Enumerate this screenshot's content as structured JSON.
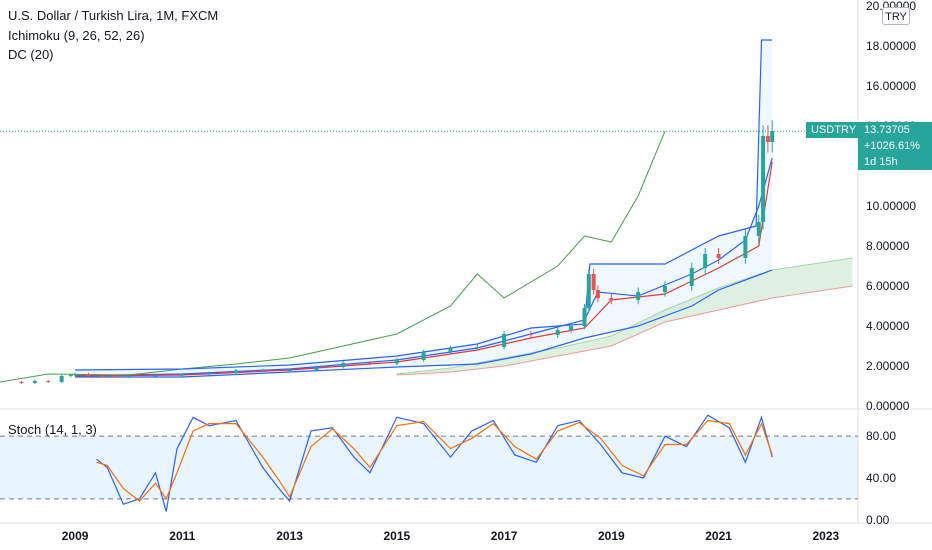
{
  "header": {
    "symbol_title": "U.S. Dollar / Turkish Lira, 1M, FXCM",
    "ichimoku_label": "Ichimoku (9, 26, 52, 26)",
    "dc_label": "DC (20)",
    "currency_badge": "TRY"
  },
  "stoch_panel": {
    "label": "Stoch (14, 1, 3)"
  },
  "price_badge": {
    "symbol": "USDTRY",
    "price": "13.73705",
    "change": "+1026.61%",
    "countdown": "1d 15h"
  },
  "colors": {
    "up": "#26a69a",
    "down": "#ef5350",
    "tenkan": "#2962ff",
    "kijun": "#e53935",
    "chikou": "#43a047",
    "donchian": "#2962ff",
    "stoch_k": "#2962ff",
    "stoch_d": "#ff6d00",
    "cloud_fill": "#c8e6c9"
  },
  "chart_data": [
    {
      "type": "line",
      "subtype": "candlestick",
      "title": "U.S. Dollar / Turkish Lira, 1M, FXCM",
      "x_axis": {
        "ticks": [
          "2009",
          "2011",
          "2013",
          "2015",
          "2017",
          "2019",
          "2021",
          "2023"
        ],
        "range": [
          2007.6,
          2023.6
        ]
      },
      "y_axis": {
        "ticks": [
          "0.00000",
          "2.00000",
          "4.00000",
          "6.00000",
          "8.00000",
          "10.00000",
          "12.00000",
          "14.00000",
          "16.00000",
          "18.00000",
          "20.00000"
        ],
        "range": [
          -0.1,
          20.3
        ]
      },
      "last_price_line": 13.73705,
      "series": [
        {
          "name": "USDTRY",
          "x": [
            2007.83,
            2008.0,
            2008.25,
            2008.5,
            2008.75,
            2008.92,
            2009.0,
            2009.25,
            2009.5,
            2009.75,
            2010.0,
            2010.5,
            2011.0,
            2011.5,
            2012.0,
            2012.5,
            2013.0,
            2013.5,
            2014.0,
            2014.5,
            2015.0,
            2015.5,
            2016.0,
            2016.5,
            2017.0,
            2017.5,
            2018.0,
            2018.25,
            2018.5,
            2018.58,
            2018.67,
            2018.75,
            2019.0,
            2019.5,
            2020.0,
            2020.5,
            2020.75,
            2021.0,
            2021.5,
            2021.75,
            2021.83,
            2021.92,
            2022.0
          ],
          "values": [
            1.2,
            1.15,
            1.25,
            1.2,
            1.5,
            1.55,
            1.6,
            1.5,
            1.48,
            1.45,
            1.5,
            1.52,
            1.58,
            1.65,
            1.78,
            1.8,
            1.8,
            1.95,
            2.15,
            2.12,
            2.3,
            2.7,
            2.9,
            2.95,
            3.6,
            3.55,
            3.8,
            4.0,
            4.9,
            6.6,
            5.8,
            5.4,
            5.3,
            5.7,
            6.0,
            6.9,
            7.6,
            7.4,
            8.5,
            9.2,
            13.5,
            13.2,
            13.74
          ]
        },
        {
          "name": "Tenkan",
          "x": [
            2009.0,
            2011.0,
            2013.0,
            2015.0,
            2016.5,
            2017.5,
            2018.5,
            2018.75,
            2019.5,
            2020.5,
            2021.0,
            2021.5,
            2021.75,
            2022.0
          ],
          "values": [
            1.52,
            1.6,
            1.85,
            2.3,
            2.9,
            3.6,
            4.3,
            5.7,
            5.5,
            6.6,
            7.3,
            8.3,
            10.0,
            12.4
          ]
        },
        {
          "name": "Kijun",
          "x": [
            2009.0,
            2011.0,
            2013.0,
            2015.0,
            2016.5,
            2017.5,
            2018.5,
            2019.0,
            2020.0,
            2021.0,
            2021.75,
            2022.0
          ],
          "values": [
            1.5,
            1.55,
            1.8,
            2.2,
            2.8,
            3.4,
            3.9,
            5.3,
            5.6,
            6.9,
            8.0,
            12.2
          ]
        },
        {
          "name": "Chikou",
          "x": [
            2007.6,
            2008.5,
            2010.0,
            2011.0,
            2012.0,
            2013.0,
            2014.0,
            2015.0,
            2016.0,
            2016.5,
            2017.0,
            2018.0,
            2018.5,
            2019.0,
            2019.5,
            2020.0
          ],
          "values": [
            1.2,
            1.6,
            1.55,
            1.85,
            2.1,
            2.4,
            3.0,
            3.6,
            5.0,
            6.6,
            5.4,
            7.0,
            8.5,
            8.2,
            10.5,
            13.74
          ]
        },
        {
          "name": "Senkou A",
          "x": [
            2015.0,
            2016.0,
            2017.0,
            2018.0,
            2019.0,
            2020.0,
            2021.0,
            2022.0,
            2023.5
          ],
          "values": [
            1.6,
            1.9,
            2.4,
            2.9,
            3.5,
            4.8,
            5.9,
            6.8,
            7.4
          ]
        },
        {
          "name": "Senkou B",
          "x": [
            2015.0,
            2016.0,
            2017.0,
            2018.0,
            2019.0,
            2020.0,
            2021.0,
            2022.0,
            2023.5
          ],
          "values": [
            1.55,
            1.7,
            2.0,
            2.5,
            3.0,
            4.2,
            4.8,
            5.4,
            6.0
          ]
        },
        {
          "name": "Donchian Upper",
          "x": [
            2009.0,
            2011.0,
            2013.0,
            2015.0,
            2016.5,
            2017.5,
            2018.5,
            2018.6,
            2020.0,
            2021.0,
            2021.7,
            2021.8,
            2022.0
          ],
          "values": [
            1.8,
            1.85,
            2.05,
            2.5,
            3.1,
            3.9,
            4.1,
            7.1,
            7.1,
            8.5,
            9.0,
            18.3,
            18.3
          ]
        },
        {
          "name": "Donchian Lower",
          "x": [
            2009.0,
            2011.0,
            2013.0,
            2015.0,
            2016.5,
            2017.5,
            2018.5,
            2019.5,
            2020.5,
            2021.0,
            2022.0
          ],
          "values": [
            1.45,
            1.45,
            1.7,
            1.95,
            2.1,
            2.6,
            3.4,
            4.0,
            5.0,
            5.8,
            6.8
          ]
        }
      ]
    },
    {
      "type": "line",
      "title": "Stoch (14, 1, 3)",
      "x_axis": {
        "range": [
          2007.6,
          2023.6
        ]
      },
      "y_axis": {
        "ticks": [
          "0.00",
          "40.00",
          "80.00"
        ],
        "range": [
          -3,
          105
        ]
      },
      "bands": [
        20,
        80
      ],
      "series": [
        {
          "name": "%K",
          "x": [
            2009.4,
            2009.6,
            2009.9,
            2010.2,
            2010.5,
            2010.7,
            2010.9,
            2011.2,
            2011.5,
            2012.0,
            2012.5,
            2012.8,
            2013.0,
            2013.4,
            2013.8,
            2014.2,
            2014.5,
            2015.0,
            2015.5,
            2016.0,
            2016.4,
            2016.8,
            2017.2,
            2017.6,
            2018.0,
            2018.4,
            2018.8,
            2019.2,
            2019.6,
            2020.0,
            2020.4,
            2020.8,
            2021.2,
            2021.5,
            2021.8,
            2022.0
          ],
          "values": [
            58,
            50,
            15,
            20,
            45,
            8,
            68,
            98,
            90,
            95,
            50,
            30,
            18,
            85,
            88,
            60,
            45,
            98,
            92,
            60,
            85,
            95,
            62,
            55,
            90,
            95,
            72,
            45,
            40,
            80,
            70,
            100,
            88,
            55,
            98,
            60
          ]
        },
        {
          "name": "%D",
          "x": [
            2009.4,
            2009.6,
            2009.9,
            2010.2,
            2010.5,
            2010.7,
            2010.9,
            2011.2,
            2011.5,
            2012.0,
            2012.5,
            2012.8,
            2013.0,
            2013.4,
            2013.8,
            2014.2,
            2014.5,
            2015.0,
            2015.5,
            2016.0,
            2016.4,
            2016.8,
            2017.2,
            2017.6,
            2018.0,
            2018.4,
            2018.8,
            2019.2,
            2019.6,
            2020.0,
            2020.4,
            2020.8,
            2021.2,
            2021.5,
            2021.8,
            2022.0
          ],
          "values": [
            55,
            52,
            30,
            18,
            35,
            20,
            45,
            85,
            92,
            92,
            60,
            38,
            22,
            70,
            87,
            68,
            50,
            90,
            94,
            68,
            78,
            92,
            70,
            58,
            85,
            93,
            78,
            52,
            42,
            72,
            72,
            95,
            92,
            62,
            92,
            62
          ]
        }
      ]
    }
  ]
}
